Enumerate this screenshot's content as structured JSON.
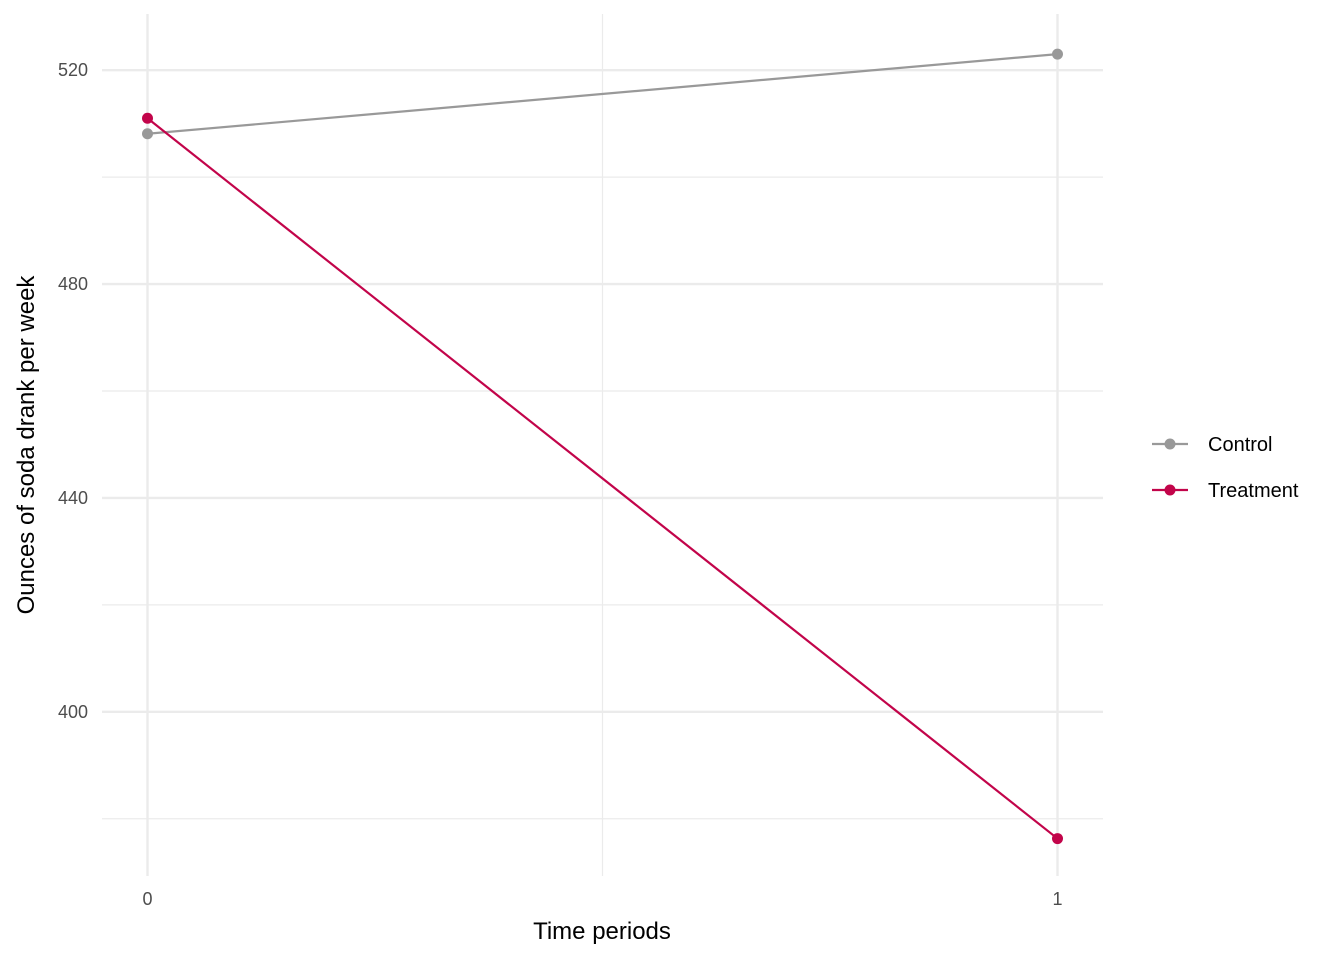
{
  "chart_data": {
    "type": "line",
    "title": "",
    "xlabel": "Time periods",
    "ylabel": "Ounces of soda drank per week",
    "x": [
      0,
      1
    ],
    "x_ticks": [
      "0",
      "1"
    ],
    "xlim": [
      -0.05,
      1.05
    ],
    "y_ticks": [
      400,
      440,
      480,
      520
    ],
    "ylim": [
      369.3,
      530.5
    ],
    "grid": true,
    "legend_position": "right",
    "series": [
      {
        "name": "Control",
        "color": "#999999",
        "values": [
          508.1,
          523.0
        ]
      },
      {
        "name": "Treatment",
        "color": "#C2044A",
        "values": [
          511.0,
          376.3
        ]
      }
    ]
  }
}
